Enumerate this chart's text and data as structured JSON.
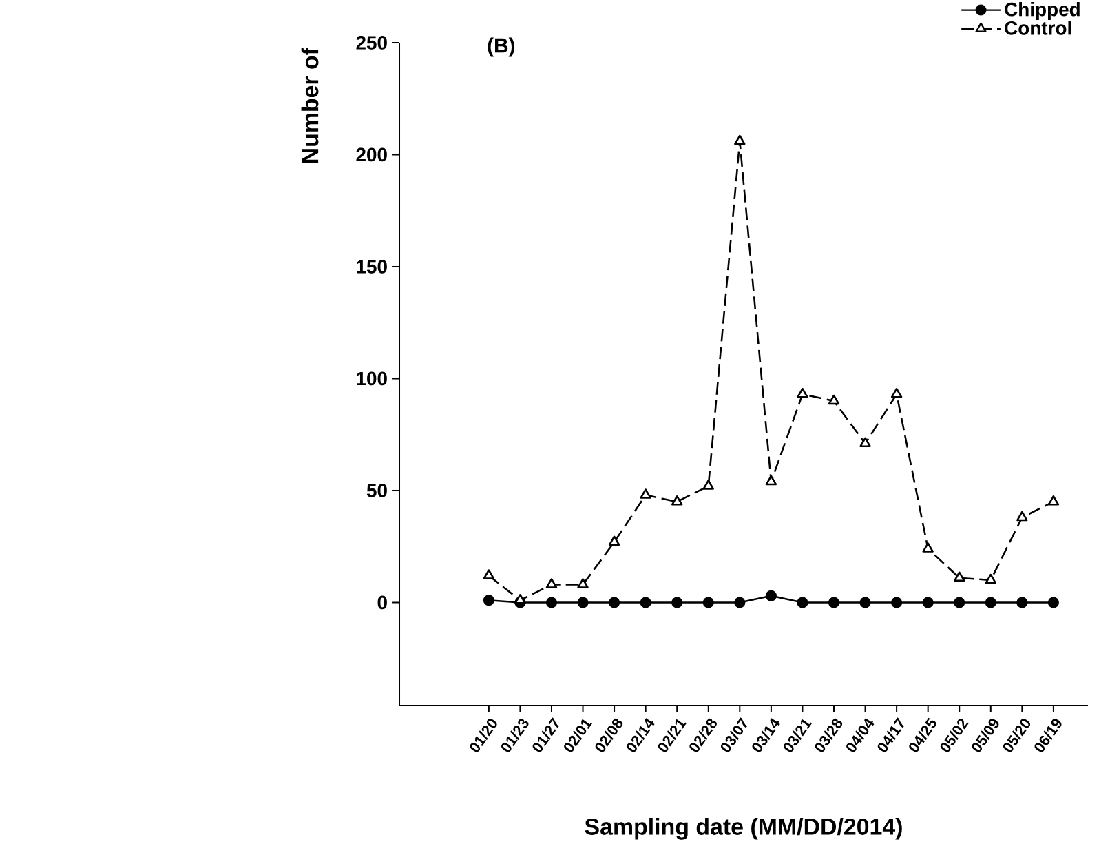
{
  "chart_data": {
    "type": "line",
    "ylabel": "Number of",
    "xlabel": "Sampling date (MM/DD/2014)",
    "annotations": [
      "(B)"
    ],
    "categories": [
      "01/20",
      "01/23",
      "01/27",
      "02/01",
      "02/08",
      "02/14",
      "02/21",
      "02/28",
      "03/07",
      "03/14",
      "03/21",
      "03/28",
      "04/04",
      "04/17",
      "04/25",
      "05/02",
      "05/09",
      "05/20",
      "06/19"
    ],
    "series": [
      {
        "name": "Chipped",
        "color": "#000000",
        "marker": "circle",
        "line_style": "solid",
        "values": [
          1,
          0,
          0,
          0,
          0,
          0,
          0,
          0,
          0,
          3,
          0,
          0,
          0,
          0,
          0,
          0,
          0,
          0,
          0
        ]
      },
      {
        "name": "Control",
        "color": "#000000",
        "marker": "triangle",
        "line_style": "dashed",
        "values": [
          12,
          1,
          8,
          8,
          27,
          48,
          45,
          52,
          206,
          54,
          93,
          90,
          71,
          93,
          24,
          11,
          10,
          38,
          45
        ]
      }
    ],
    "ylim": [
      -46,
      250
    ],
    "yticks": [
      0,
      50,
      100,
      150,
      200,
      250
    ],
    "grid": false,
    "legend": "top right"
  }
}
